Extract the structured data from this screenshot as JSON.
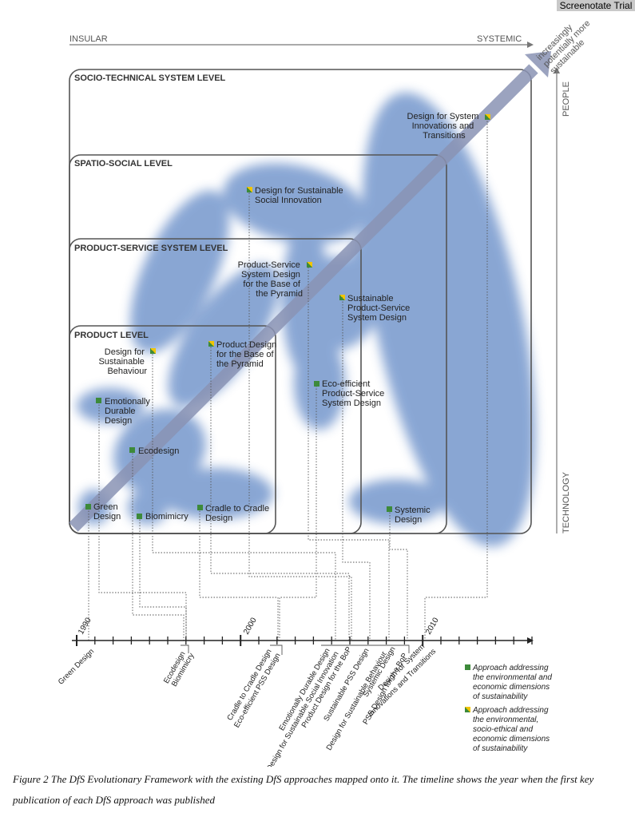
{
  "watermark": "Screenotate Trial",
  "axis": {
    "left_label": "INSULAR",
    "right_label": "SYSTEMIC",
    "top_label": "PEOPLE",
    "bottom_label": "TECHNOLOGY"
  },
  "arrow_label": [
    "increasingly",
    "potentially more",
    "sustainable"
  ],
  "levels": [
    {
      "id": "socio-technical",
      "label": "SOCIO-TECHNICAL SYSTEM LEVEL"
    },
    {
      "id": "spatio-social",
      "label": "SPATIO-SOCIAL LEVEL"
    },
    {
      "id": "product-service",
      "label": "PRODUCT-SERVICE SYSTEM LEVEL"
    },
    {
      "id": "product",
      "label": "PRODUCT LEVEL"
    }
  ],
  "approaches": [
    {
      "id": "system-innovations",
      "lines": [
        "Design for System",
        "Innovations and",
        "Transitions"
      ],
      "type": "socio-ethical"
    },
    {
      "id": "sustainable-social-innovation",
      "lines": [
        "Design for Sustainable",
        "Social Innovation"
      ],
      "type": "socio-ethical"
    },
    {
      "id": "pss-bop",
      "lines": [
        "Product-Service",
        "System Design",
        "for the Base of",
        "the Pyramid"
      ],
      "type": "socio-ethical"
    },
    {
      "id": "sustainable-pss",
      "lines": [
        "Sustainable",
        "Product-Service",
        "System Design"
      ],
      "type": "socio-ethical"
    },
    {
      "id": "sustainable-behaviour",
      "lines": [
        "Design for",
        "Sustainable",
        "Behaviour"
      ],
      "type": "socio-ethical"
    },
    {
      "id": "product-bop",
      "lines": [
        "Product Design",
        "for the Base of",
        "the Pyramid"
      ],
      "type": "socio-ethical"
    },
    {
      "id": "eco-efficient-pss",
      "lines": [
        "Eco-efficient",
        "Product-Service",
        "System Design"
      ],
      "type": "environmental"
    },
    {
      "id": "emotionally-durable",
      "lines": [
        "Emotionally",
        "Durable",
        "Design"
      ],
      "type": "environmental"
    },
    {
      "id": "ecodesign",
      "lines": [
        "Ecodesign"
      ],
      "type": "environmental"
    },
    {
      "id": "green-design",
      "lines": [
        "Green",
        "Design"
      ],
      "type": "environmental"
    },
    {
      "id": "biomimicry",
      "lines": [
        "Biomimicry"
      ],
      "type": "environmental"
    },
    {
      "id": "cradle-to-cradle",
      "lines": [
        "Cradle to Cradle",
        "Design"
      ],
      "type": "environmental"
    },
    {
      "id": "systemic-design",
      "lines": [
        "Systemic",
        "Design"
      ],
      "type": "environmental"
    }
  ],
  "timeline": {
    "years": [
      "1990",
      "2000",
      "2010"
    ],
    "labels": [
      [
        "Green Design"
      ],
      [
        "Ecodesign",
        "Biomimicry"
      ],
      [
        "Cradle to Cradle Design",
        "Eco-efficient PSS Design"
      ],
      [
        "Emotionally Durable Design",
        "Design for Sustainable Social Innovation",
        "Product Design for the BoP",
        "Sustainable PSS Design",
        "Design for Sustainable Behaviour",
        "Systemic Design",
        "PSS Design for the BoP"
      ],
      [
        "Design for System",
        "Innovations and Transitions"
      ]
    ]
  },
  "legend": [
    {
      "type": "environmental",
      "lines": [
        "Approach addressing",
        "the environmental and",
        "economic dimensions",
        "of sustainability"
      ]
    },
    {
      "type": "socio-ethical",
      "lines": [
        "Approach addressing",
        "the environmental,",
        "socio-ethical and",
        "economic dimensions",
        "of sustainability"
      ]
    }
  ],
  "caption": "Figure 2 The DfS Evolutionary Framework with the existing DfS approaches mapped onto it. The timeline shows the year when the first key publication of each DfS approach was published",
  "colors": {
    "blob": "#7f9fd0",
    "box": "#555555",
    "green": "#3d8a3a",
    "yellow": "#f2c500",
    "arrow": "#8a93b4"
  }
}
